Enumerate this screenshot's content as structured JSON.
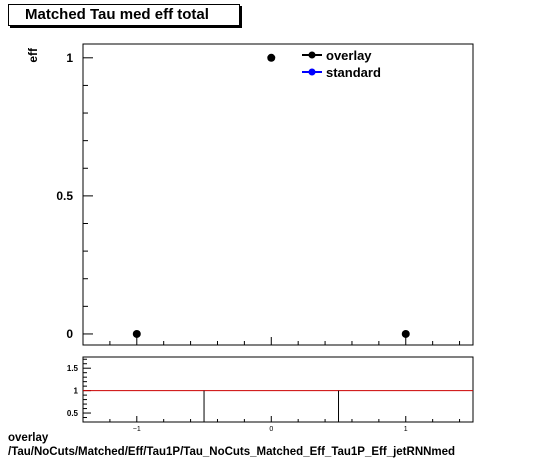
{
  "title": "Matched Tau med eff total",
  "footer": {
    "line1": "overlay",
    "line2": "/Tau/NoCuts/Matched/Eff/Tau1P/Tau_NoCuts_Matched_Eff_Tau1P_Eff_jetRNNmed"
  },
  "colors": {
    "overlay": "#000000",
    "standard": "#0000ff",
    "ratio_line": "#cc0000"
  },
  "chart_data": [
    {
      "type": "scatter",
      "title": "Matched Tau med eff total",
      "ylabel": "eff",
      "xlim": [
        -1.4,
        1.5
      ],
      "ylim": [
        -0.04,
        1.05
      ],
      "x_ticks": [
        "−1",
        "0",
        "1"
      ],
      "y_ticks": [
        "0",
        "0.5",
        "1"
      ],
      "legend": {
        "position": "top-right",
        "entries": [
          "overlay",
          "standard"
        ]
      },
      "series": [
        {
          "name": "overlay",
          "x": [
            -1,
            0,
            1
          ],
          "y": [
            0,
            1,
            0
          ]
        },
        {
          "name": "standard",
          "x": [],
          "y": []
        }
      ]
    },
    {
      "type": "line",
      "xlim": [
        -1.4,
        1.5
      ],
      "ylim": [
        0.3,
        1.75
      ],
      "x_ticks": [
        "−1",
        "0",
        "1"
      ],
      "y_ticks": [
        "0.5",
        "1",
        "1.5"
      ],
      "reference_y": 1,
      "bin_edges": [
        -0.5,
        0.5
      ]
    }
  ]
}
